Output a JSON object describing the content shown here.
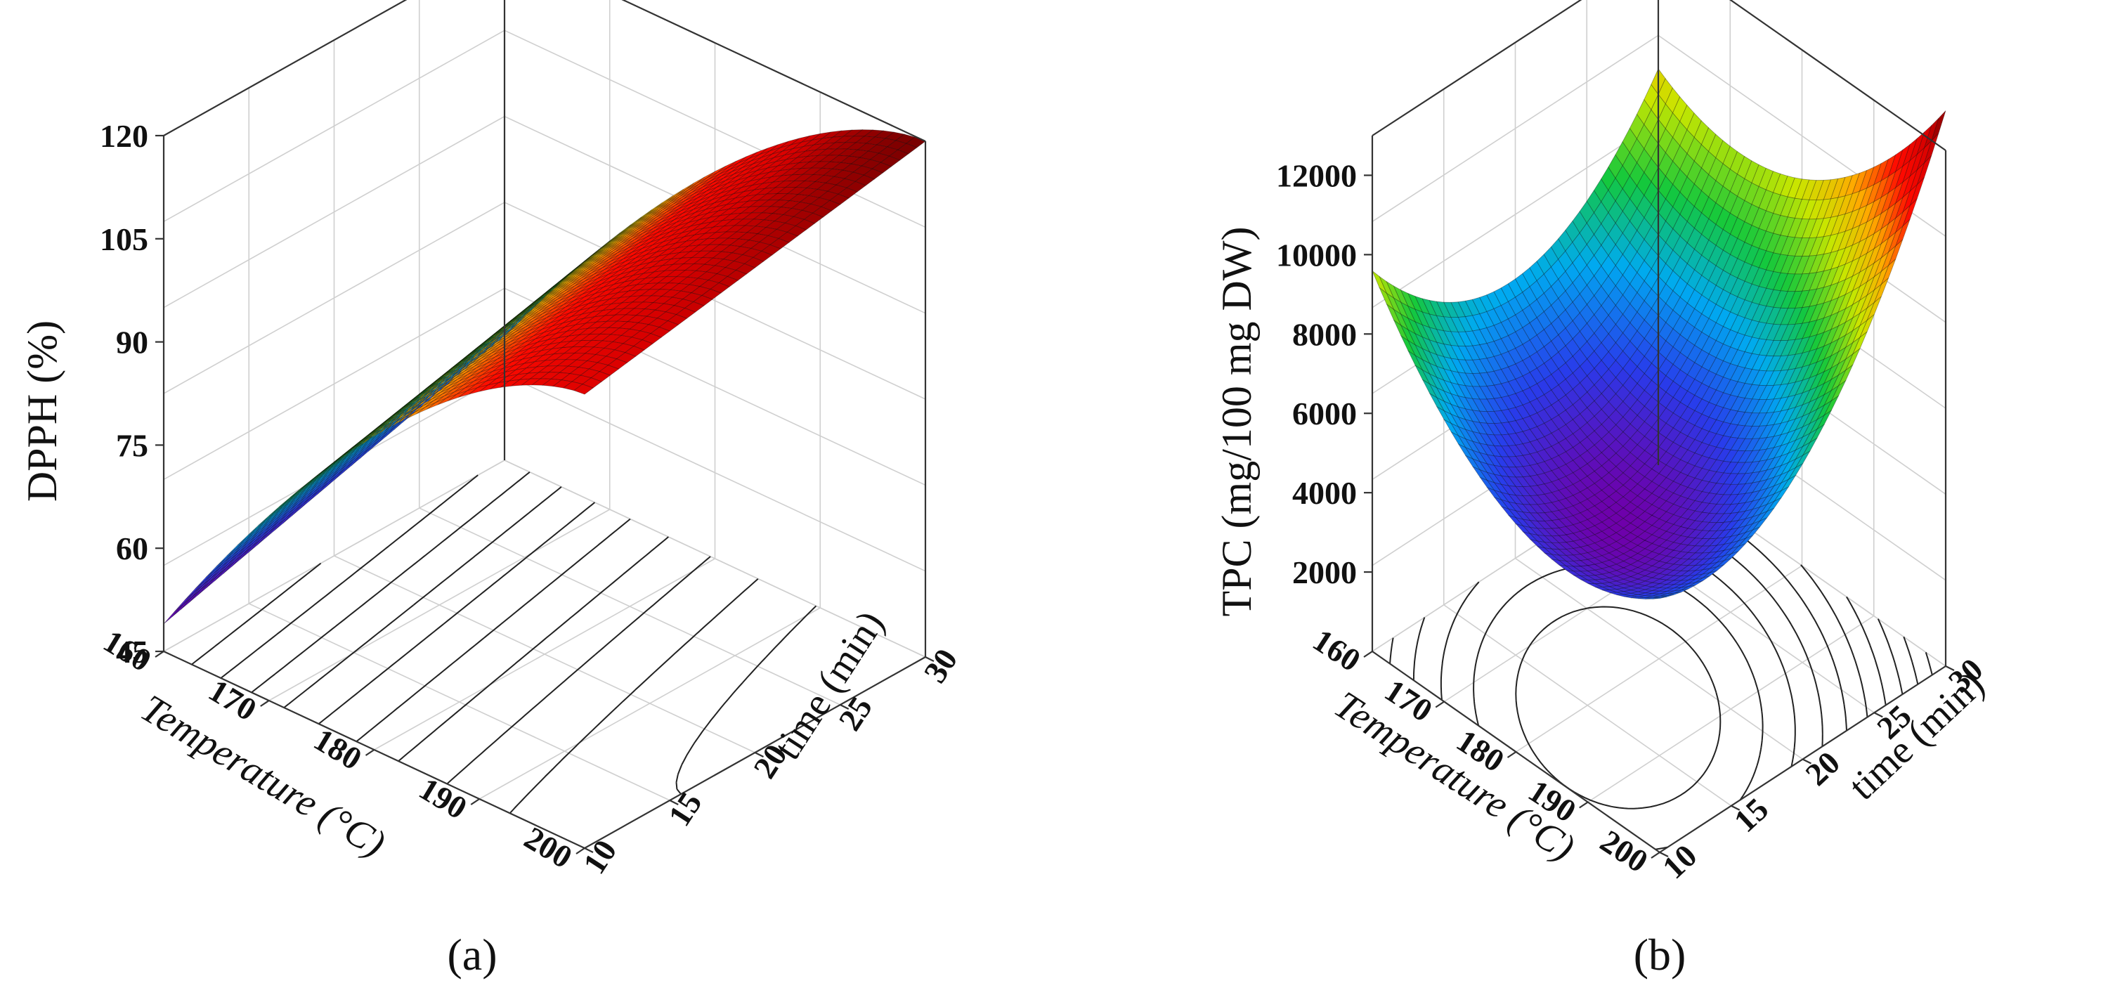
{
  "chart_data": [
    {
      "type": "surface3d",
      "panel_label": "(a)",
      "zlabel": "DPPH (%)",
      "xlabel": "Temperature (°C)",
      "ylabel": "time (min)",
      "xlim": [
        160,
        200
      ],
      "ylim": [
        10,
        30
      ],
      "zlim": [
        45,
        120
      ],
      "x_ticks": [
        "160",
        "170",
        "180",
        "190",
        "200"
      ],
      "y_ticks": [
        "10",
        "15",
        "20",
        "25",
        "30"
      ],
      "z_ticks": [
        "45",
        "60",
        "75",
        "90",
        "105",
        "120"
      ],
      "grid": true,
      "colormap": "rainbow (violet → blue → green → yellow → red → dark red)",
      "contour_levels": 10,
      "surface_values": {
        "T=160,t=10": 49,
        "T=160,t=30": 63,
        "T=200,t=10": 103,
        "T=200,t=30": 120
      }
    },
    {
      "type": "surface3d",
      "panel_label": "(b)",
      "zlabel": "TPC (mg/100 mg DW)",
      "xlabel": "Temperature (°C)",
      "ylabel": "time (min)",
      "xlim": [
        160,
        200
      ],
      "ylim": [
        10,
        30
      ],
      "zlim": [
        0,
        13000
      ],
      "x_ticks": [
        "160",
        "170",
        "180",
        "190",
        "200"
      ],
      "y_ticks": [
        "10",
        "15",
        "20",
        "25",
        "30"
      ],
      "z_ticks": [
        "2000",
        "4000",
        "6000",
        "8000",
        "10000",
        "12000"
      ],
      "grid": true,
      "colormap": "rainbow (violet → blue → green → yellow → red → dark red)",
      "contour_levels": 10,
      "surface_values": {
        "T=160,t=10": 8600,
        "T=160,t=30": 7700,
        "T=200,t=10": 8900,
        "T=200,t=30": 13000,
        "min_near": {
          "T": 183,
          "t": 17,
          "value": 4100
        }
      }
    }
  ]
}
